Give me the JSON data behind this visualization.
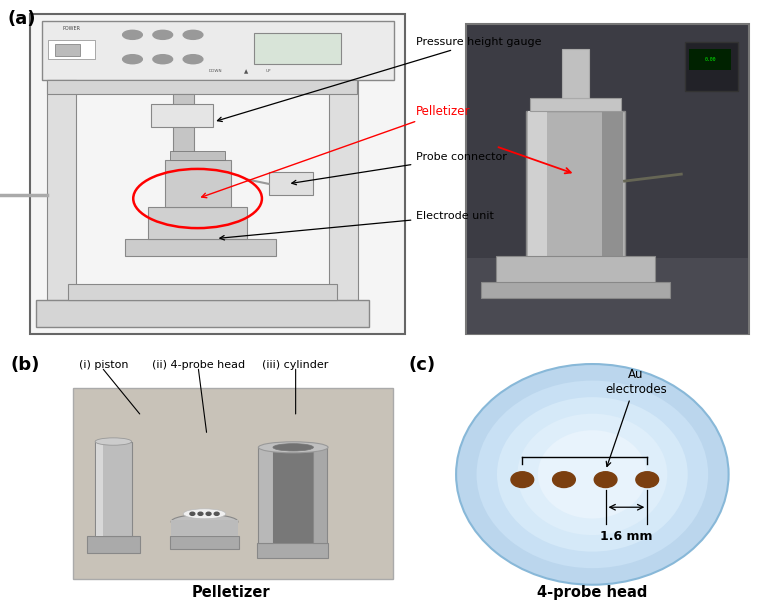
{
  "panel_a_label": "(a)",
  "panel_b_label": "(b)",
  "panel_c_label": "(c)",
  "b_caption": "Pelletizer",
  "c_caption": "4-probe head",
  "c_au_label": "Au\nelectrodes",
  "c_dim_label": "1.6 mm",
  "electrode_color": "#7B3F10",
  "circle_fill": "#c8e0f4",
  "circle_edge": "#a0c4de",
  "background_color": "#ffffff",
  "annot_phg_text": "Pressure height gauge",
  "annot_pell_text": "Pelletizer",
  "annot_probe_text": "Probe connector",
  "annot_elec_text": "Electrode unit",
  "b_label_1": "(i) piston",
  "b_label_2": "(ii) 4-probe head",
  "b_label_3": "(iii) cylinder",
  "machine_bg": "#f5f5f5",
  "machine_edge": "#666666",
  "photo_bg": "#5a5a5a",
  "metal_light": "#c8c8c8",
  "metal_dark": "#909090"
}
